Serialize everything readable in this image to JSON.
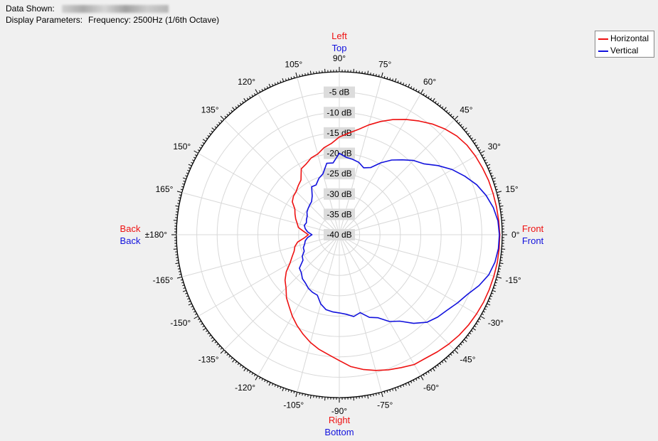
{
  "header": {
    "data_shown_label": "Data Shown:",
    "display_params_label": "Display Parameters:",
    "display_params_value": "Frequency: 2500Hz (1/6th Octave)"
  },
  "colors": {
    "horizontal": "#ee1111",
    "vertical": "#1111dd",
    "grid": "#d8d8d8",
    "plot_bg": "#ffffff"
  },
  "side_labels": {
    "top_h": "Left",
    "top_v": "Top",
    "bottom_h": "Right",
    "bottom_v": "Bottom",
    "left_h": "Back",
    "left_v": "Back",
    "right_h": "Front",
    "right_v": "Front"
  },
  "chart_data": {
    "type": "polar",
    "angle_unit": "degrees",
    "angle_ticks": [
      "0°",
      "15°",
      "30°",
      "45°",
      "60°",
      "75°",
      "90°",
      "105°",
      "120°",
      "135°",
      "150°",
      "165°",
      "±180°",
      "-165°",
      "-150°",
      "-135°",
      "-120°",
      "-105°",
      "-90°",
      "-75°",
      "-60°",
      "-45°",
      "-30°",
      "-15°"
    ],
    "angle_tick_values": [
      0,
      15,
      30,
      45,
      60,
      75,
      90,
      105,
      120,
      135,
      150,
      165,
      180,
      -165,
      -150,
      -135,
      -120,
      -105,
      -90,
      -75,
      -60,
      -45,
      -30,
      -15
    ],
    "radial_ticks": [
      "-5 dB",
      "-10 dB",
      "-15 dB",
      "-20 dB",
      "-25 dB",
      "-30 dB",
      "-35 dB",
      "-40 dB"
    ],
    "radial_tick_values": [
      -5,
      -10,
      -15,
      -20,
      -25,
      -30,
      -35,
      -40
    ],
    "radial_range": [
      -40,
      0
    ],
    "grid": true,
    "legend_position": "top-right",
    "series": [
      {
        "name": "Horizontal",
        "color": "#ee1111",
        "angles": [
          0,
          5,
          10,
          15,
          20,
          25,
          30,
          35,
          40,
          45,
          50,
          55,
          60,
          65,
          70,
          75,
          80,
          85,
          90,
          95,
          100,
          105,
          110,
          115,
          120,
          125,
          130,
          135,
          140,
          145,
          150,
          155,
          160,
          165,
          170,
          175,
          180,
          185,
          190,
          195,
          200,
          205,
          210,
          215,
          220,
          225,
          230,
          235,
          240,
          245,
          250,
          255,
          260,
          265,
          270,
          275,
          280,
          285,
          290,
          295,
          300,
          305,
          310,
          315,
          320,
          325,
          330,
          335,
          340,
          345,
          350,
          355
        ],
        "values": [
          -0.6,
          -0.7,
          -0.8,
          -0.9,
          -1.0,
          -1.2,
          -1.4,
          -1.7,
          -2.3,
          -3.3,
          -4.5,
          -5.9,
          -7.3,
          -8.8,
          -10.4,
          -12.1,
          -13.8,
          -15.0,
          -16.0,
          -17.5,
          -18.3,
          -19.5,
          -19.9,
          -20.8,
          -21.3,
          -23.6,
          -24.3,
          -25.0,
          -25.3,
          -25.9,
          -27.4,
          -28.0,
          -28.6,
          -29.3,
          -29.8,
          -31.3,
          -32.4,
          -31.4,
          -29.6,
          -28.7,
          -28.2,
          -27.2,
          -26.0,
          -24.1,
          -22.6,
          -21.5,
          -19.8,
          -18.5,
          -16.9,
          -15.4,
          -14.0,
          -12.6,
          -11.4,
          -10.4,
          -9.1,
          -7.5,
          -6.4,
          -5.5,
          -4.7,
          -4.0,
          -3.2,
          -3.0,
          -2.5,
          -2.0,
          -1.6,
          -1.3,
          -1.1,
          -0.9,
          -0.8,
          -0.7,
          -0.6,
          -0.6
        ]
      },
      {
        "name": "Vertical",
        "color": "#1111dd",
        "angles": [
          0,
          5,
          10,
          15,
          20,
          25,
          30,
          35,
          40,
          45,
          50,
          55,
          60,
          65,
          70,
          75,
          80,
          85,
          90,
          95,
          100,
          105,
          110,
          115,
          120,
          125,
          130,
          135,
          140,
          145,
          150,
          155,
          160,
          165,
          170,
          175,
          180,
          185,
          190,
          195,
          200,
          205,
          210,
          215,
          220,
          225,
          230,
          235,
          240,
          245,
          250,
          255,
          260,
          265,
          270,
          275,
          280,
          285,
          290,
          295,
          300,
          305,
          310,
          315,
          320,
          325,
          330,
          335,
          340,
          345,
          350,
          355
        ],
        "values": [
          -0.7,
          -0.9,
          -1.6,
          -2.7,
          -4.1,
          -6.0,
          -8.0,
          -10.4,
          -12.9,
          -14.2,
          -16.0,
          -17.6,
          -19.6,
          -21.8,
          -22.5,
          -21.6,
          -21.2,
          -20.9,
          -20.0,
          -22.3,
          -22.2,
          -24.5,
          -25.3,
          -26.5,
          -26.4,
          -28.4,
          -29.4,
          -29.7,
          -30.0,
          -30.3,
          -30.9,
          -31.1,
          -31.4,
          -31.1,
          -31.5,
          -32.2,
          -33.3,
          -32.2,
          -31.5,
          -31.2,
          -30.6,
          -30.5,
          -29.5,
          -29.1,
          -27.2,
          -26.8,
          -25.9,
          -25.5,
          -24.8,
          -24.4,
          -24.2,
          -22.4,
          -21.3,
          -21.0,
          -20.8,
          -20.4,
          -19.6,
          -20.2,
          -18.4,
          -17.5,
          -15.4,
          -14.1,
          -11.6,
          -9.6,
          -8.5,
          -7.7,
          -6.5,
          -5.3,
          -3.5,
          -2.0,
          -1.2,
          -0.8
        ]
      }
    ]
  }
}
